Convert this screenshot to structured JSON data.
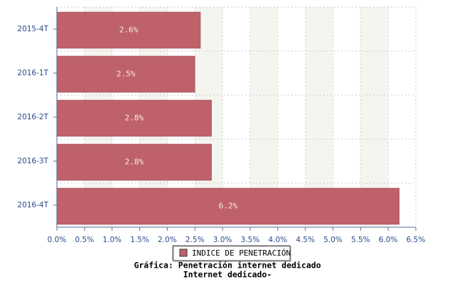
{
  "chart_data": {
    "type": "bar",
    "orientation": "horizontal",
    "title": "Gráfica: Penetración internet dedicado",
    "subtitle": "Internet dedicado-",
    "categories": [
      "2015-4T",
      "2016-1T",
      "2016-2T",
      "2016-3T",
      "2016-4T"
    ],
    "series": [
      {
        "name": "INDICE DE PENETRACIÓN",
        "color": "#bf616b",
        "values": [
          2.6,
          2.5,
          2.8,
          2.8,
          6.2
        ],
        "value_labels": [
          "2.6%",
          "2.5%",
          "2.8%",
          "2.8%",
          "6.2%"
        ]
      }
    ],
    "xlim": [
      0,
      6.5
    ],
    "xticks": [
      {
        "value": 0,
        "label": "0.0%"
      },
      {
        "value": 0.5,
        "label": "0.5%"
      },
      {
        "value": 1,
        "label": "1.0%"
      },
      {
        "value": 1.5,
        "label": "1.5%"
      },
      {
        "value": 2,
        "label": "2.0%"
      },
      {
        "value": 2.5,
        "label": "2.5%"
      },
      {
        "value": 3,
        "label": "3.0%"
      },
      {
        "value": 3.5,
        "label": "3.5%"
      },
      {
        "value": 4,
        "label": "4.0%"
      },
      {
        "value": 4.5,
        "label": "4.5%"
      },
      {
        "value": 5,
        "label": "5.0%"
      },
      {
        "value": 5.5,
        "label": "5.5%"
      },
      {
        "value": 6,
        "label": "6.0%"
      },
      {
        "value": 6.5,
        "label": "6.5%"
      }
    ],
    "grid": true,
    "legend": "bottom"
  }
}
